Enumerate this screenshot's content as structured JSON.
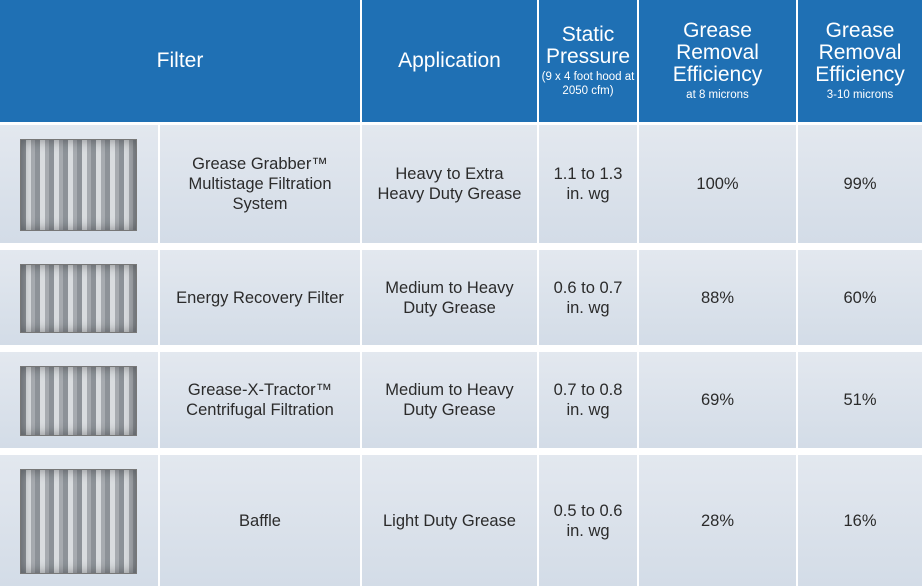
{
  "table": {
    "header": [
      {
        "title": "Filter"
      },
      {
        "title": "Application"
      },
      {
        "title": "Static Pressure",
        "note": "(9 x 4 foot hood at 2050 cfm)"
      },
      {
        "title": "Grease Removal Efficiency",
        "note": "at 8 microns"
      },
      {
        "title": "Grease Removal Efficiency",
        "note": "3-10 microns"
      }
    ],
    "rows": [
      [
        "Grease Grabber™ Multistage Filtration System",
        "Heavy to Extra Heavy Duty Grease",
        "1.1 to 1.3 in. wg",
        "100%",
        "99%"
      ],
      [
        "Energy Recovery Filter",
        "Medium to Heavy Duty Grease",
        "0.6 to 0.7 in. wg",
        "88%",
        "60%"
      ],
      [
        "Grease-X-Tractor™ Centrifugal Filtration",
        "Medium to Heavy Duty Grease",
        "0.7 to 0.8 in. wg",
        "69%",
        "51%"
      ],
      [
        "Baffle",
        "Light Duty Grease",
        "0.5 to 0.6 in. wg",
        "28%",
        "16%"
      ]
    ]
  }
}
